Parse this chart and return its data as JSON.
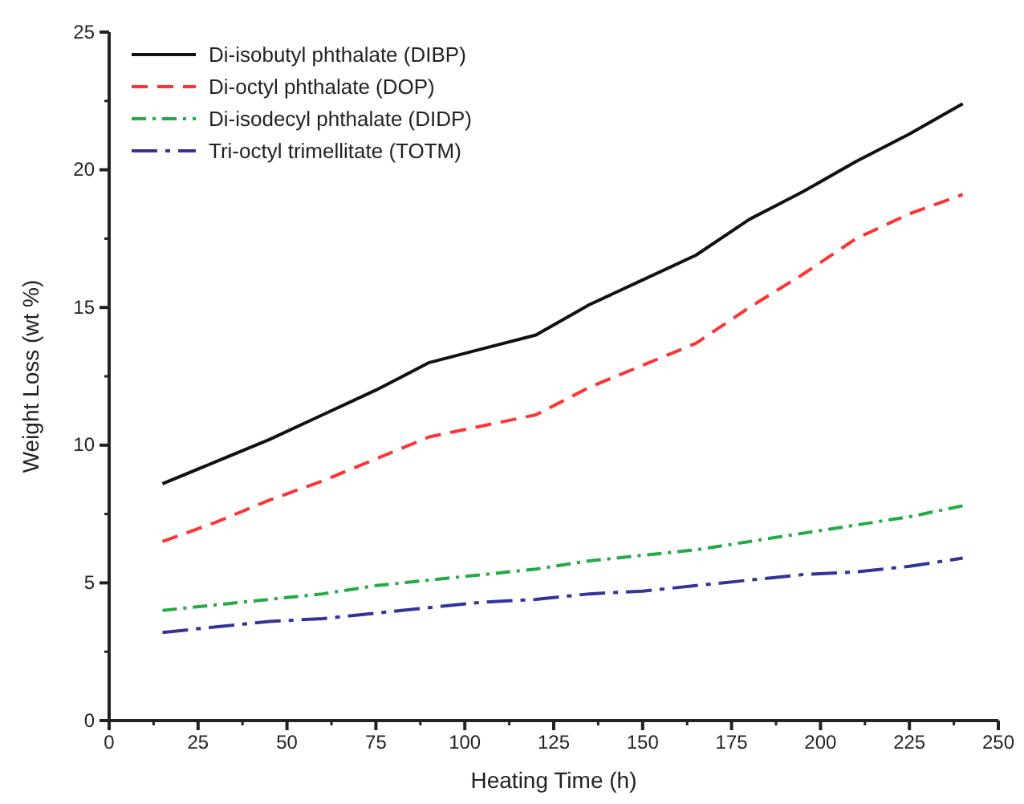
{
  "chart_data": {
    "type": "line",
    "xlabel": "Heating Time (h)",
    "ylabel": "Weight Loss (wt %)",
    "x": [
      15,
      30,
      45,
      60,
      75,
      90,
      105,
      120,
      135,
      150,
      165,
      180,
      195,
      210,
      225,
      240
    ],
    "xlim": [
      0,
      250
    ],
    "xticks": [
      0,
      25,
      50,
      75,
      100,
      125,
      150,
      175,
      200,
      225,
      250
    ],
    "ylim": [
      0,
      25
    ],
    "yticks": [
      0,
      5,
      10,
      15,
      20,
      25
    ],
    "legend": "top left",
    "grid": false,
    "series": [
      {
        "name": "Di-isobutyl phthalate (DIBP)",
        "color": "#111111",
        "line_style": "solid",
        "values": [
          8.6,
          9.4,
          10.2,
          11.1,
          12.0,
          13.0,
          13.5,
          14.0,
          15.1,
          16.0,
          16.9,
          18.2,
          19.2,
          20.3,
          21.3,
          22.4
        ]
      },
      {
        "name": "Di-octyl phthalate (DOP)",
        "color": "#ff3333",
        "line_style": "dashed",
        "values": [
          6.5,
          7.2,
          8.0,
          8.7,
          9.5,
          10.3,
          10.7,
          11.1,
          12.1,
          12.9,
          13.7,
          15.0,
          16.2,
          17.5,
          18.4,
          19.1
        ]
      },
      {
        "name": "Di-isodecyl phthalate (DIDP)",
        "color": "#22aa44",
        "line_style": "dashdot",
        "values": [
          4.0,
          4.2,
          4.4,
          4.6,
          4.9,
          5.1,
          5.3,
          5.5,
          5.8,
          6.0,
          6.2,
          6.5,
          6.8,
          7.1,
          7.4,
          7.8
        ]
      },
      {
        "name": "Tri-octyl trimellitate (TOTM)",
        "color": "#333399",
        "line_style": "longdashdot",
        "values": [
          3.2,
          3.4,
          3.6,
          3.7,
          3.9,
          4.1,
          4.3,
          4.4,
          4.6,
          4.7,
          4.9,
          5.1,
          5.3,
          5.4,
          5.6,
          5.9
        ]
      }
    ]
  }
}
